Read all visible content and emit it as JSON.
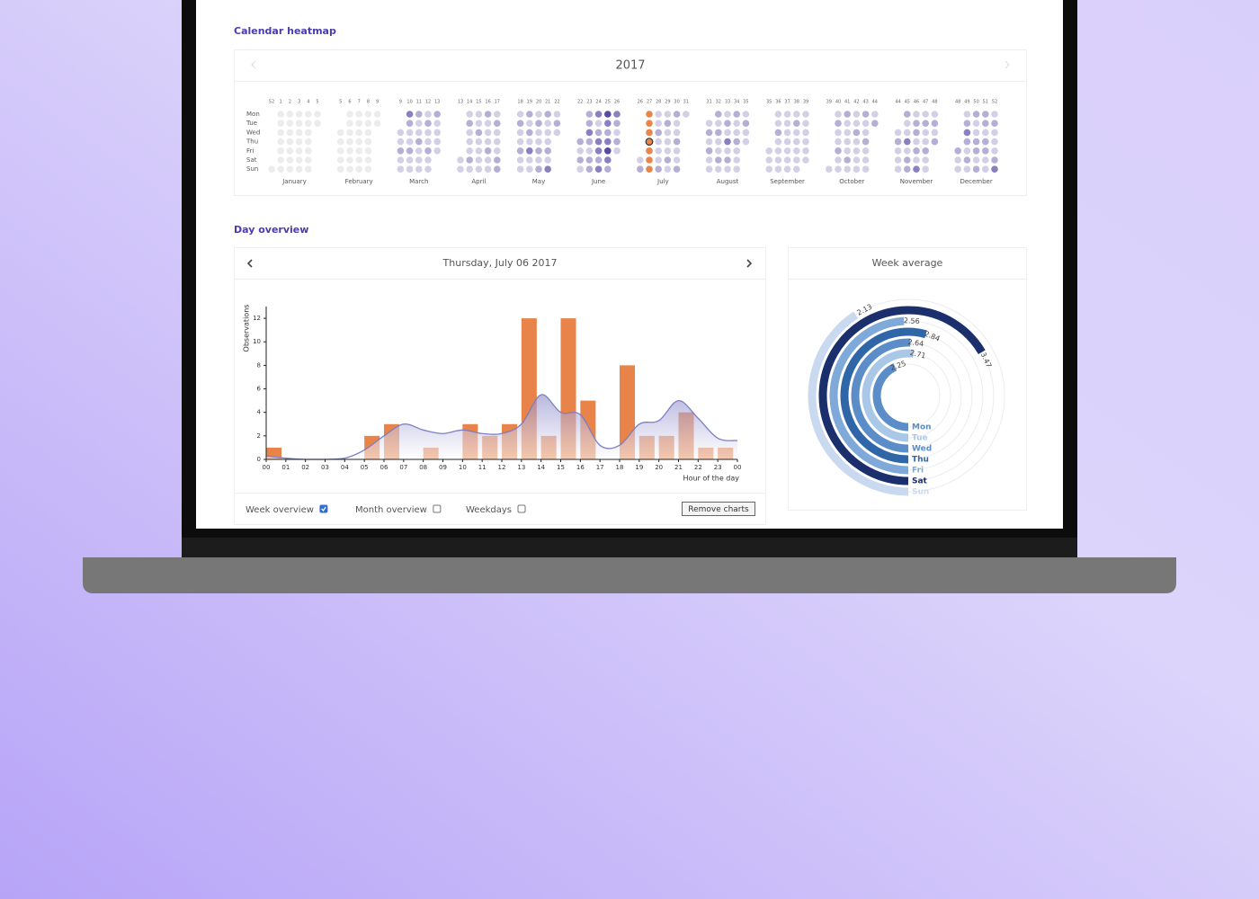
{
  "heatmap": {
    "title": "Calendar heatmap",
    "year": "2017",
    "weekdays": [
      "Mon",
      "Tue",
      "Wed",
      "Thu",
      "Fri",
      "Sat",
      "Sun"
    ],
    "months": [
      "January",
      "February",
      "March",
      "April",
      "May",
      "June",
      "July",
      "August",
      "September",
      "October",
      "November",
      "December"
    ],
    "week_numbers": [
      [
        52,
        1,
        2,
        3,
        4,
        5
      ],
      [
        5,
        6,
        7,
        8,
        9
      ],
      [
        9,
        10,
        11,
        12,
        13
      ],
      [
        13,
        14,
        15,
        16,
        17
      ],
      [
        18,
        19,
        20,
        21,
        22
      ],
      [
        22,
        23,
        24,
        25,
        26
      ],
      [
        26,
        27,
        28,
        29,
        30,
        31
      ],
      [
        31,
        32,
        33,
        34,
        35
      ],
      [
        35,
        36,
        37,
        38,
        39
      ],
      [
        39,
        40,
        41,
        42,
        43,
        44
      ],
      [
        44,
        45,
        46,
        47,
        48
      ],
      [
        48,
        49,
        50,
        51,
        52
      ]
    ],
    "colors": [
      "#ececec",
      "#d3d0e6",
      "#b5afd6",
      "#8a80bf",
      "#5b4b9e"
    ],
    "selected_color": "#e8854a",
    "values": [
      [
        0,
        0,
        0,
        0,
        0,
        0,
        0,
        0,
        0,
        0,
        0,
        0,
        0,
        0,
        0,
        0,
        0,
        0,
        0,
        0,
        0,
        0,
        0,
        0,
        0,
        0,
        0,
        0,
        0,
        0,
        0
      ],
      [
        0,
        0,
        0,
        0,
        0,
        0,
        0,
        0,
        0,
        0,
        0,
        0,
        0,
        0,
        0,
        0,
        0,
        0,
        0,
        0,
        0,
        0,
        0,
        0,
        0,
        0,
        0,
        0
      ],
      [
        1,
        1,
        2,
        1,
        1,
        3,
        2,
        1,
        1,
        2,
        1,
        1,
        2,
        1,
        1,
        2,
        1,
        1,
        1,
        1,
        2,
        1,
        1,
        2,
        1,
        1,
        2,
        1,
        1,
        1,
        1
      ],
      [
        1,
        1,
        1,
        2,
        1,
        1,
        1,
        2,
        1,
        1,
        1,
        2,
        1,
        1,
        1,
        1,
        2,
        1,
        1,
        1,
        2,
        1,
        1,
        1,
        2,
        1,
        1,
        1,
        2,
        2
      ],
      [
        1,
        2,
        1,
        1,
        2,
        1,
        1,
        2,
        1,
        2,
        1,
        3,
        1,
        1,
        1,
        2,
        1,
        1,
        2,
        1,
        2,
        2,
        1,
        1,
        1,
        2,
        1,
        3,
        1,
        2,
        1
      ],
      [
        2,
        1,
        2,
        1,
        2,
        2,
        3,
        2,
        1,
        2,
        2,
        3,
        1,
        2,
        3,
        3,
        2,
        3,
        4,
        3,
        2,
        3,
        4,
        3,
        2,
        3,
        2,
        1,
        2,
        1
      ],
      [
        1,
        2,
        2,
        1,
        1,
        3,
        1,
        1,
        2,
        1,
        1,
        2,
        1,
        1,
        1,
        2,
        1,
        2,
        1,
        1,
        1,
        2,
        1,
        2,
        1,
        1,
        2,
        1,
        1,
        2,
        1
      ],
      [
        1,
        2,
        1,
        2,
        1,
        1,
        2,
        1,
        2,
        1,
        1,
        2,
        1,
        1,
        2,
        1,
        3,
        1,
        2,
        1,
        2,
        1,
        1,
        2,
        1,
        1,
        1,
        1,
        2,
        1,
        1
      ],
      [
        1,
        1,
        1,
        1,
        1,
        2,
        1,
        1,
        1,
        1,
        1,
        1,
        1,
        1,
        1,
        1,
        1,
        1,
        2,
        1,
        1,
        1,
        1,
        1,
        1,
        1,
        1,
        1,
        1,
        1
      ],
      [
        1,
        1,
        2,
        1,
        1,
        2,
        1,
        1,
        2,
        1,
        1,
        1,
        1,
        2,
        1,
        1,
        1,
        2,
        1,
        1,
        1,
        1,
        2,
        1,
        1,
        2,
        1,
        1,
        1,
        1,
        2
      ],
      [
        1,
        2,
        1,
        1,
        1,
        2,
        1,
        1,
        3,
        1,
        2,
        2,
        1,
        2,
        2,
        1,
        2,
        1,
        3,
        1,
        2,
        1,
        1,
        2,
        1,
        1,
        1,
        2,
        1,
        2
      ],
      [
        2,
        1,
        1,
        1,
        2,
        3,
        2,
        1,
        2,
        1,
        2,
        1,
        1,
        2,
        2,
        1,
        2,
        2,
        2,
        1,
        2,
        2,
        1,
        1,
        1,
        2,
        1,
        1,
        1,
        2,
        3
      ]
    ]
  },
  "day_overview": {
    "title": "Day overview",
    "date": "Thursday, July 06 2017",
    "controls": [
      {
        "label": "Week overview",
        "checked": true
      },
      {
        "label": "Month overview",
        "checked": false
      },
      {
        "label": "Weekdays",
        "checked": false
      }
    ],
    "button": "Remove charts"
  },
  "chart_data": [
    {
      "type": "bar",
      "x": [
        0,
        1,
        2,
        3,
        4,
        5,
        6,
        7,
        8,
        9,
        10,
        11,
        12,
        13,
        14,
        15,
        16,
        17,
        18,
        19,
        20,
        21,
        22,
        23
      ],
      "values": [
        1,
        0,
        0,
        0,
        0,
        2,
        3,
        0,
        1,
        0,
        3,
        2,
        3,
        12,
        2,
        12,
        5,
        0,
        8,
        2,
        2,
        4,
        1,
        1
      ],
      "color": "#e8834a",
      "trend": {
        "x": [
          0,
          1,
          2,
          3,
          4,
          5,
          6,
          7,
          8,
          9,
          10,
          11,
          12,
          13,
          14,
          15,
          16,
          17,
          18,
          19,
          20,
          21,
          22,
          23,
          24
        ],
        "values": [
          0.3,
          0.1,
          0,
          0,
          0.1,
          0.8,
          2,
          3,
          2.5,
          2.2,
          2.5,
          2.2,
          2.2,
          3,
          5.5,
          4,
          3.8,
          1.2,
          1.2,
          3,
          3.3,
          5,
          3.5,
          1.8,
          1.6
        ],
        "color": "#7b7fc4"
      },
      "xlim": [
        0,
        24
      ],
      "xticks": [
        {
          "value": 0,
          "label": "00"
        },
        {
          "value": 1,
          "label": "01"
        },
        {
          "value": 2,
          "label": "02"
        },
        {
          "value": 3,
          "label": "03"
        },
        {
          "value": 4,
          "label": "04"
        },
        {
          "value": 5,
          "label": "05"
        },
        {
          "value": 6,
          "label": "06"
        },
        {
          "value": 7,
          "label": "07"
        },
        {
          "value": 8,
          "label": "08"
        },
        {
          "value": 9,
          "label": "09"
        },
        {
          "value": 10,
          "label": "10"
        },
        {
          "value": 11,
          "label": "11"
        },
        {
          "value": 12,
          "label": "12"
        },
        {
          "value": 13,
          "label": "13"
        },
        {
          "value": 14,
          "label": "14"
        },
        {
          "value": 15,
          "label": "15"
        },
        {
          "value": 16,
          "label": "16"
        },
        {
          "value": 17,
          "label": "17"
        },
        {
          "value": 18,
          "label": "18"
        },
        {
          "value": 19,
          "label": "19"
        },
        {
          "value": 20,
          "label": "20"
        },
        {
          "value": 21,
          "label": "21"
        },
        {
          "value": 22,
          "label": "22"
        },
        {
          "value": 23,
          "label": "23"
        },
        {
          "value": 24,
          "label": "00"
        }
      ],
      "ylim": [
        0,
        13
      ],
      "yticks": [
        0,
        2,
        4,
        6,
        8,
        10,
        12
      ],
      "xlabel": "Hour of the day",
      "ylabel": "Observations"
    },
    {
      "type": "radial_bar",
      "title": "Week average",
      "categories": [
        "Mon",
        "Tue",
        "Wed",
        "Thu",
        "Fri",
        "Sat",
        "Sun"
      ],
      "values": [
        2.25,
        2.71,
        2.64,
        2.84,
        2.56,
        3.47,
        2.13
      ],
      "colors": [
        "#5b8ec9",
        "#a9c8e8",
        "#5b8ec9",
        "#2f66a8",
        "#7fa9d8",
        "#1a2f6b",
        "#c9d9ef"
      ]
    }
  ]
}
